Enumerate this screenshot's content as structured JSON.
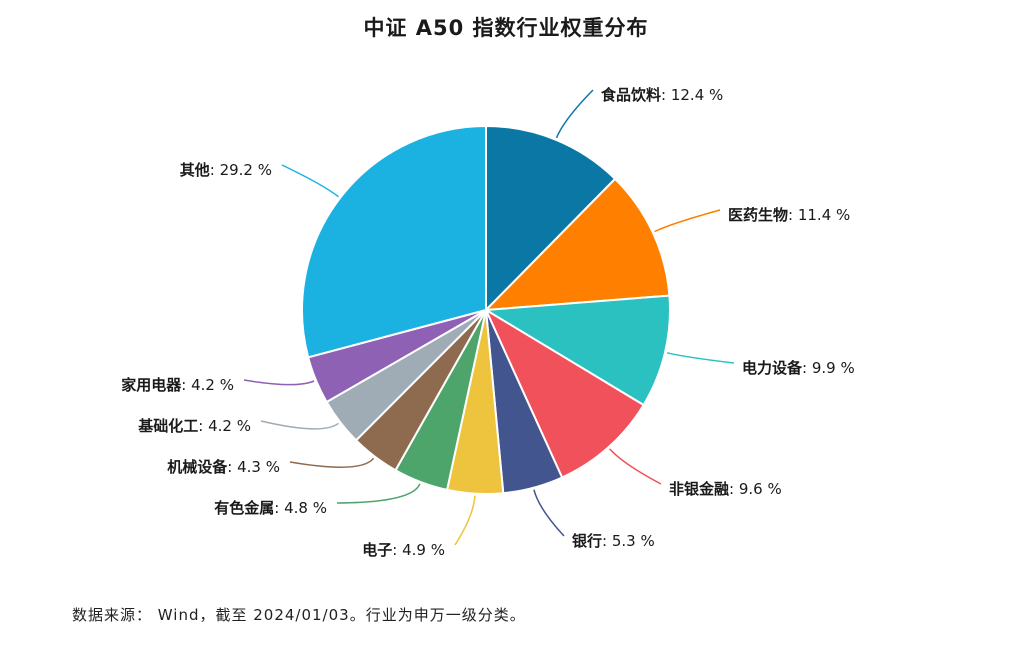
{
  "title": "中证 A50 指数行业权重分布",
  "source": "数据来源： Wind，截至 2024/01/03。行业为申万一级分类。",
  "chart_data": {
    "type": "pie",
    "title": "中证 A50 指数行业权重分布",
    "unit": "%",
    "start_angle_deg": 0,
    "direction": "clockwise",
    "slices": [
      {
        "label": "食品饮料",
        "value": 12.4,
        "display": "12.4 %",
        "color": "#0a77a5"
      },
      {
        "label": "医药生物",
        "value": 11.4,
        "display": "11.4 %",
        "color": "#ff8000"
      },
      {
        "label": "电力设备",
        "value": 9.9,
        "display": "9.9 %",
        "color": "#2cc1c1"
      },
      {
        "label": "非银金融",
        "value": 9.6,
        "display": "9.6 %",
        "color": "#f0515a"
      },
      {
        "label": "银行",
        "value": 5.3,
        "display": "5.3 %",
        "color": "#43558f"
      },
      {
        "label": "电子",
        "value": 4.9,
        "display": "4.9 %",
        "color": "#eec33d"
      },
      {
        "label": "有色金属",
        "value": 4.8,
        "display": "4.8 %",
        "color": "#4ea56c"
      },
      {
        "label": "机械设备",
        "value": 4.3,
        "display": "4.3 %",
        "color": "#8e6a4e"
      },
      {
        "label": "基础化工",
        "value": 4.2,
        "display": "4.2 %",
        "color": "#9fabb5"
      },
      {
        "label": "家用电器",
        "value": 4.2,
        "display": "4.2 %",
        "color": "#8e61b4"
      },
      {
        "label": "其他",
        "value": 29.2,
        "display": "29.2 %",
        "color": "#1bb2e2"
      }
    ]
  }
}
